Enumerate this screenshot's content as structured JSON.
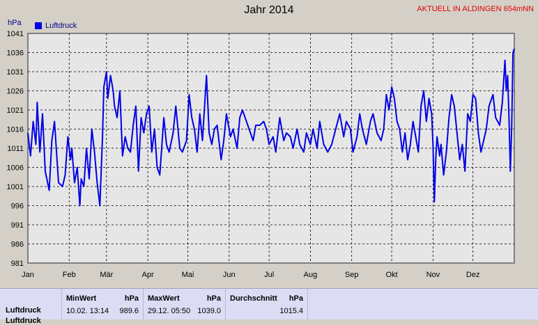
{
  "header": {
    "title": "Jahr 2014",
    "station": "AKTUELL IN ALDINGEN 654mNN",
    "unit": "hPa",
    "legend": "Luftdruck"
  },
  "colors": {
    "series": "#0000e6",
    "frame": "#808080",
    "grid": "#000000"
  },
  "chart_data": {
    "type": "line",
    "title": "Jahr 2014",
    "ylabel": "hPa",
    "ylim": [
      981,
      1041
    ],
    "yticks": [
      981,
      986,
      991,
      996,
      1001,
      1006,
      1011,
      1016,
      1021,
      1026,
      1031,
      1036,
      1041
    ],
    "xlim": [
      1,
      366
    ],
    "months": [
      {
        "label": "Jan",
        "day": 1
      },
      {
        "label": "Feb",
        "day": 32
      },
      {
        "label": "Mär",
        "day": 60
      },
      {
        "label": "Apr",
        "day": 91
      },
      {
        "label": "Mai",
        "day": 121
      },
      {
        "label": "Jun",
        "day": 152
      },
      {
        "label": "Jul",
        "day": 182
      },
      {
        "label": "Aug",
        "day": 213
      },
      {
        "label": "Sep",
        "day": 244
      },
      {
        "label": "Okt",
        "day": 274
      },
      {
        "label": "Nov",
        "day": 305
      },
      {
        "label": "Dez",
        "day": 335
      }
    ],
    "grid": true,
    "legend": "top-left",
    "series": [
      {
        "name": "Luftdruck",
        "x": [
          1,
          3,
          5,
          7,
          8,
          10,
          12,
          14,
          17,
          19,
          21,
          24,
          27,
          29,
          31,
          33,
          34,
          36,
          38,
          40,
          41,
          43,
          45,
          47,
          49,
          51,
          53,
          55,
          57,
          58,
          60,
          61,
          63,
          65,
          66,
          68,
          70,
          72,
          74,
          76,
          78,
          80,
          82,
          84,
          86,
          88,
          90,
          92,
          94,
          96,
          98,
          100,
          103,
          105,
          107,
          110,
          112,
          115,
          117,
          120,
          122,
          124,
          126,
          128,
          130,
          132,
          135,
          137,
          139,
          141,
          143,
          146,
          148,
          150,
          153,
          155,
          158,
          160,
          162,
          165,
          168,
          170,
          172,
          175,
          178,
          180,
          182,
          185,
          187,
          190,
          193,
          195,
          198,
          200,
          203,
          205,
          208,
          210,
          213,
          215,
          218,
          220,
          223,
          226,
          229,
          232,
          235,
          238,
          240,
          243,
          245,
          248,
          250,
          252,
          255,
          258,
          260,
          263,
          266,
          268,
          270,
          272,
          274,
          276,
          278,
          280,
          282,
          284,
          286,
          288,
          290,
          292,
          294,
          296,
          298,
          300,
          302,
          304,
          305,
          306,
          307,
          308,
          310,
          311,
          313,
          315,
          317,
          319,
          321,
          323,
          325,
          327,
          329,
          331,
          333,
          335,
          337,
          339,
          341,
          343,
          345,
          347,
          350,
          352,
          355,
          357,
          359,
          360,
          361,
          362,
          363,
          364,
          365,
          366
        ],
        "values": [
          1015,
          1009,
          1018,
          1012,
          1023,
          1010,
          1020,
          1005,
          1000,
          1013,
          1018,
          1002,
          1001,
          1004,
          1014,
          1008,
          1011,
          1002,
          1006,
          996,
          1003,
          1001,
          1011,
          1003,
          1016,
          1010,
          1002,
          996,
          1014,
          1027,
          1031,
          1024,
          1030,
          1026,
          1022,
          1019,
          1026,
          1009,
          1014,
          1011,
          1010,
          1017,
          1022,
          1005,
          1019,
          1015,
          1020,
          1022,
          1010,
          1016,
          1006,
          1004,
          1019,
          1012,
          1010,
          1015,
          1022,
          1011,
          1010,
          1013,
          1025,
          1019,
          1016,
          1010,
          1020,
          1013,
          1030,
          1015,
          1012,
          1016,
          1017,
          1008,
          1013,
          1020,
          1014,
          1016,
          1011,
          1019,
          1021,
          1018,
          1015,
          1013,
          1017,
          1017,
          1018,
          1016,
          1012,
          1014,
          1010,
          1019,
          1013,
          1015,
          1014,
          1011,
          1016,
          1012,
          1010,
          1015,
          1012,
          1016,
          1011,
          1018,
          1012,
          1010,
          1012,
          1016,
          1020,
          1014,
          1018,
          1016,
          1010,
          1014,
          1020,
          1016,
          1012,
          1018,
          1020,
          1015,
          1013,
          1016,
          1025,
          1021,
          1027,
          1024,
          1018,
          1016,
          1010,
          1015,
          1008,
          1012,
          1018,
          1014,
          1010,
          1022,
          1026,
          1018,
          1024,
          1020,
          1012,
          997,
          1008,
          1014,
          1009,
          1012,
          1004,
          1010,
          1019,
          1025,
          1022,
          1015,
          1008,
          1012,
          1005,
          1020,
          1018,
          1025,
          1024,
          1015,
          1010,
          1013,
          1016,
          1022,
          1025,
          1019,
          1017,
          1023,
          1034,
          1026,
          1030,
          1019,
          1005,
          1016,
          1036,
          1037
        ]
      }
    ]
  },
  "stats": {
    "row_label": "Luftdruck",
    "row_label2": "Luftdruck",
    "min_header": "MinWert",
    "min_unit": "hPa",
    "min_time": "10.02.  13:14",
    "min_value": "989.6",
    "max_header": "MaxWert",
    "max_unit": "hPa",
    "max_time": "29.12.  05:50",
    "max_value": "1039.0",
    "avg_header": "Durchschnitt",
    "avg_unit": "hPa",
    "avg_value": "1015.4"
  }
}
